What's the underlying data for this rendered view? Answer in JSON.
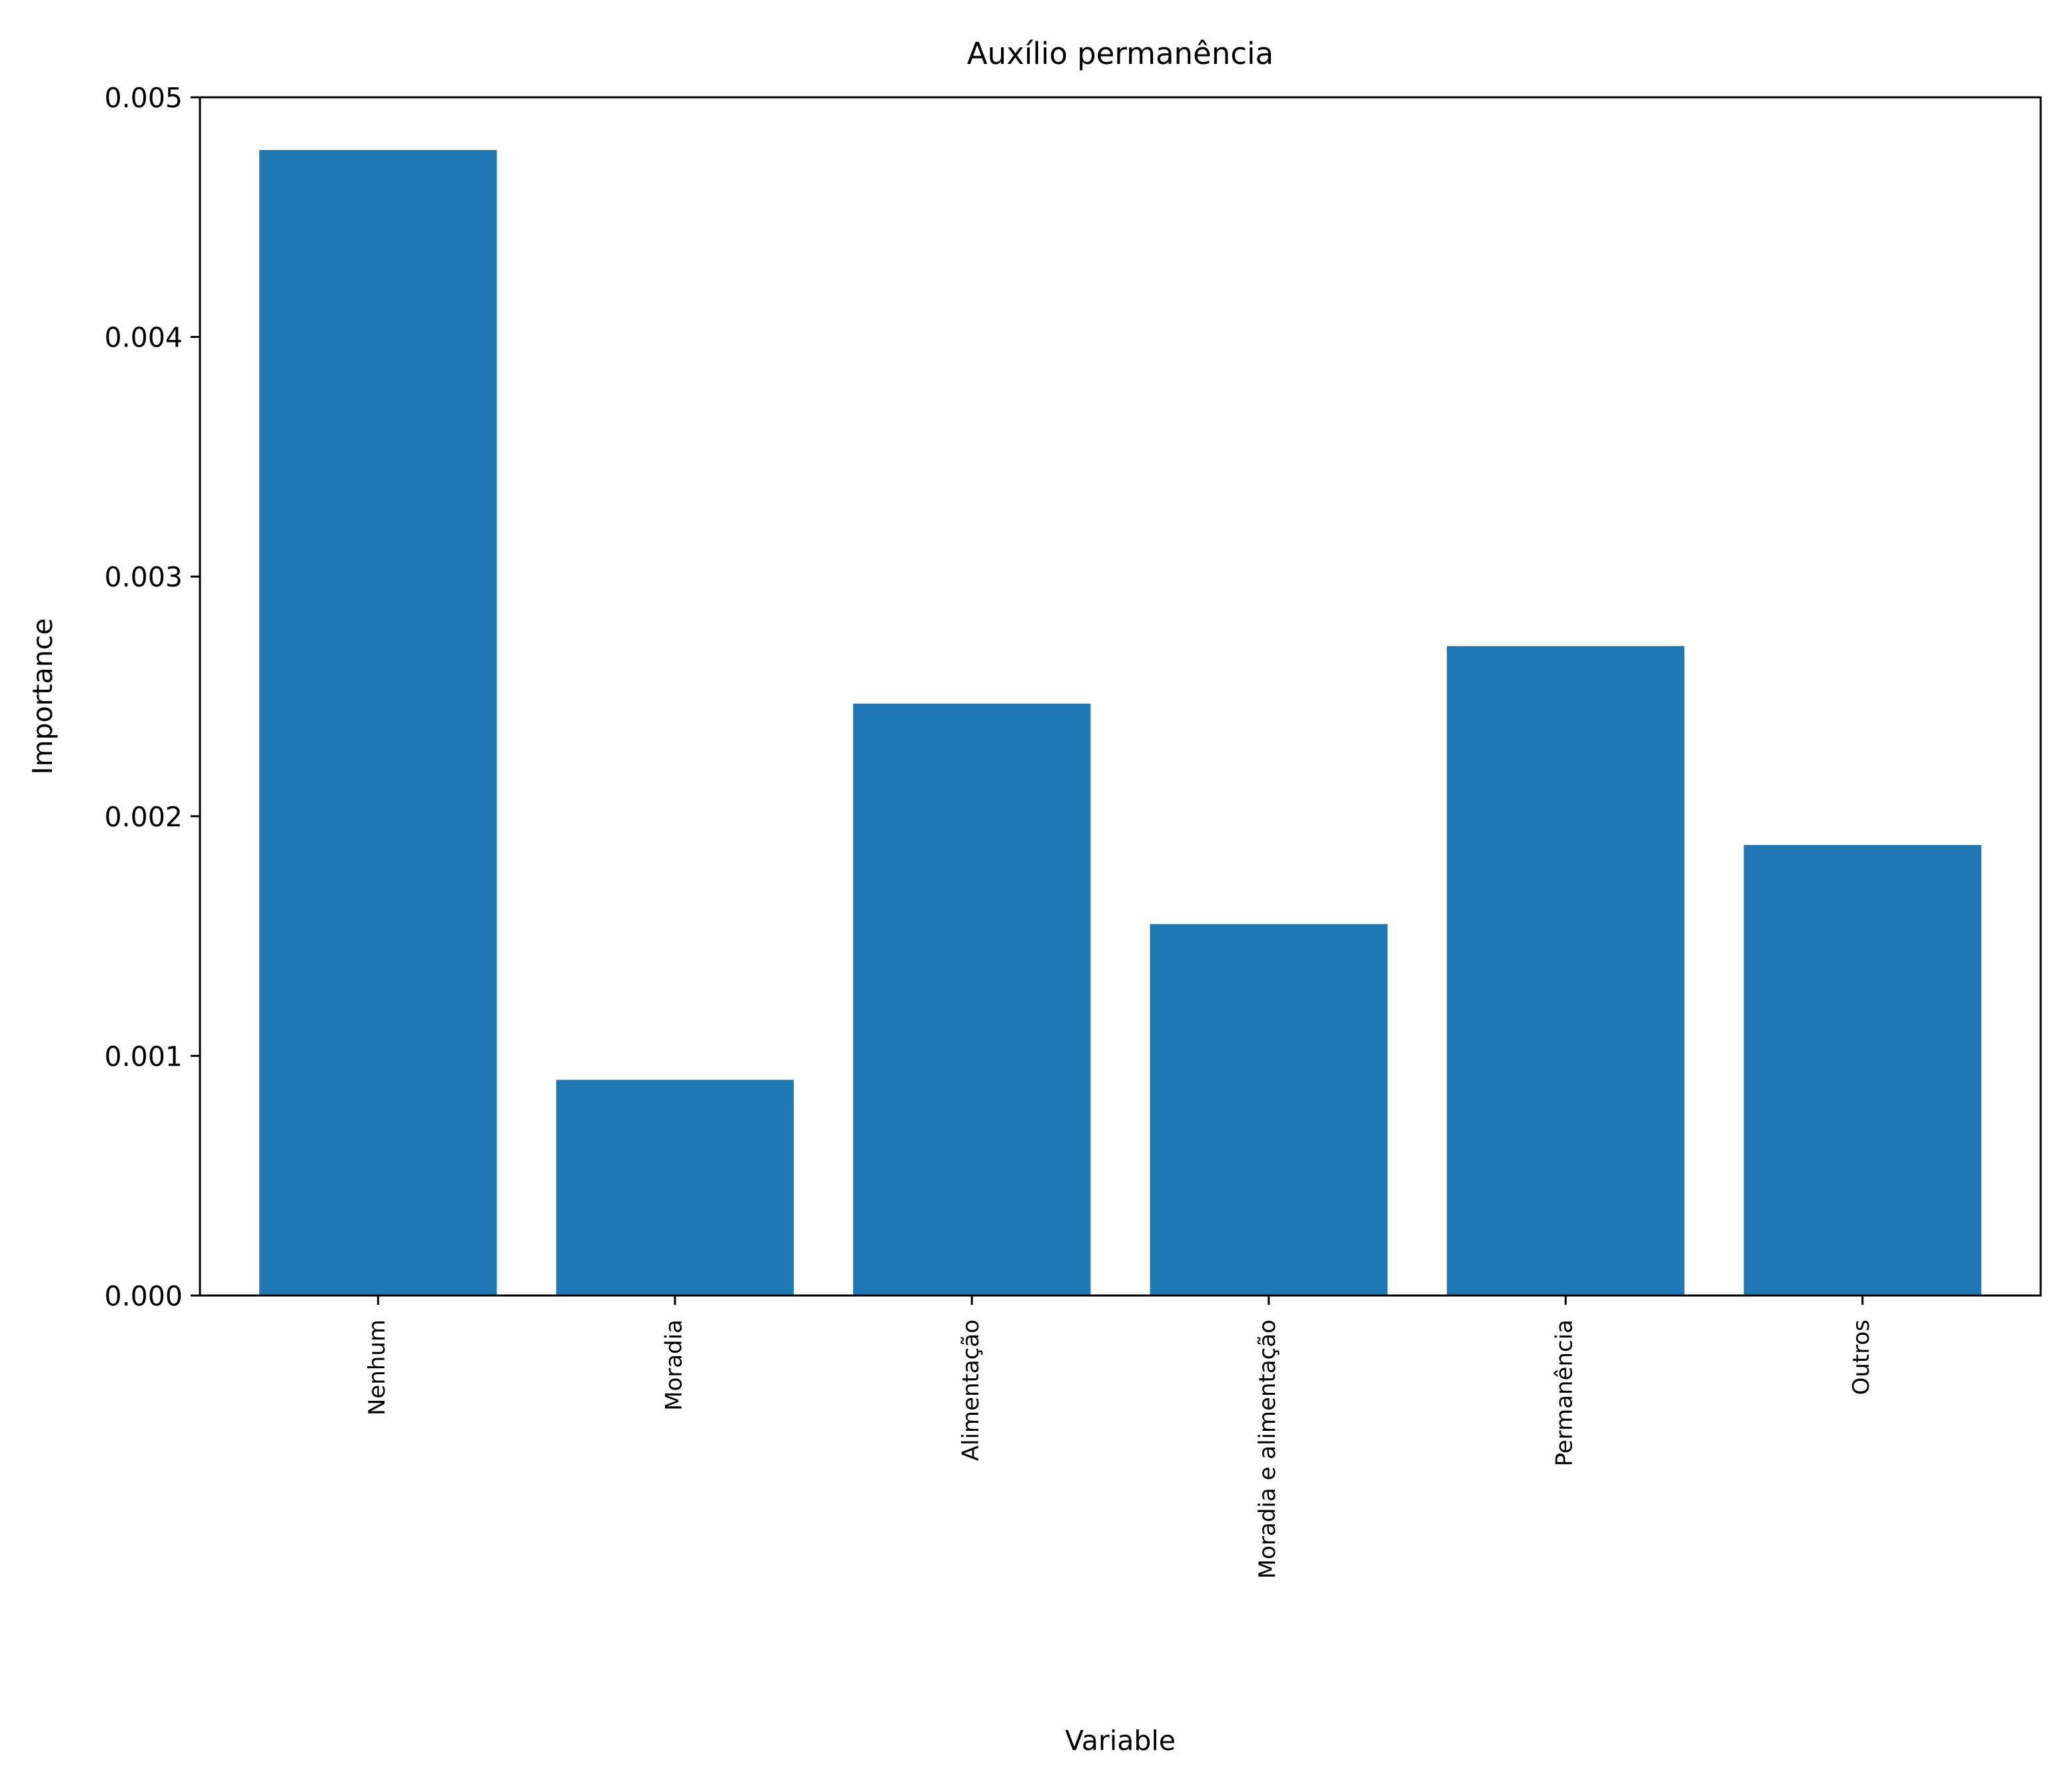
{
  "chart_data": {
    "type": "bar",
    "title": "Auxílio permanência",
    "xlabel": "Variable",
    "ylabel": "Importance",
    "categories": [
      "Nenhum",
      "Moradia",
      "Alimentação",
      "Moradia e alimentação",
      "Permanência",
      "Outros"
    ],
    "values": [
      0.00478,
      0.0009,
      0.00247,
      0.00155,
      0.00271,
      0.00188
    ],
    "ylim": [
      0,
      0.005
    ],
    "yticks": [
      "0.000",
      "0.001",
      "0.002",
      "0.003",
      "0.004",
      "0.005"
    ],
    "grid": false,
    "bar_color": "#1f77b4"
  }
}
